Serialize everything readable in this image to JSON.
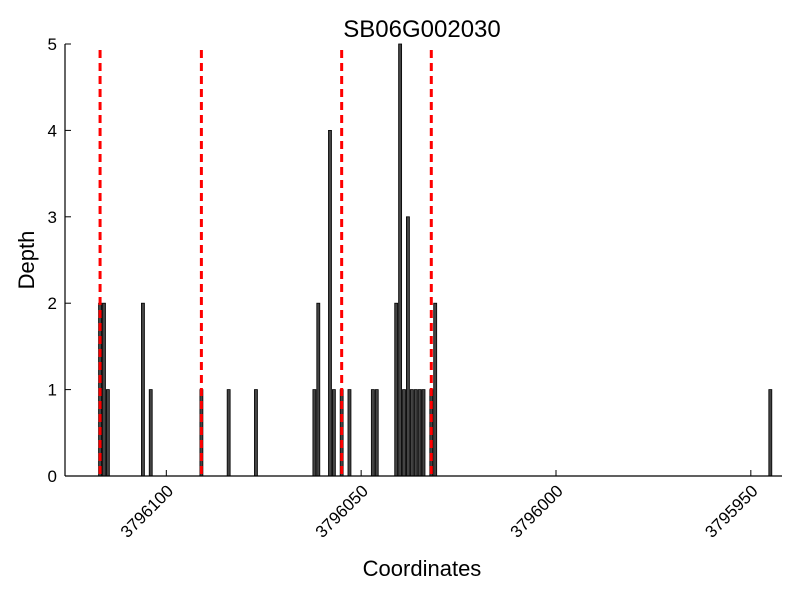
{
  "chart_data": {
    "type": "bar",
    "title": "SB06G002030",
    "xlabel": "Coordinates",
    "ylabel": "Depth",
    "xlim": [
      3796126,
      3795942
    ],
    "ylim": [
      0,
      5
    ],
    "x_axis_reversed": true,
    "x_ticks": [
      3796100,
      3796050,
      3796000,
      3795950
    ],
    "x_tick_labels": [
      "3796100",
      "3796050",
      "3796000",
      "3795950"
    ],
    "y_ticks": [
      0,
      1,
      2,
      3,
      4,
      5
    ],
    "y_tick_labels": [
      "0",
      "1",
      "2",
      "3",
      "4",
      "5"
    ],
    "grid": false,
    "bar_color": "#444444",
    "marker_color": "#ff0000",
    "series": [
      {
        "x": [
          3796117,
          3796116,
          3796115,
          3796106,
          3796104,
          3796091,
          3796084,
          3796077,
          3796062,
          3796061,
          3796058,
          3796057,
          3796055,
          3796053,
          3796047,
          3796046,
          3796041,
          3796040,
          3796039,
          3796038,
          3796037,
          3796036,
          3796035,
          3796034,
          3796032,
          3796031,
          3795945
        ],
        "values": [
          2,
          2,
          1,
          2,
          1,
          1,
          1,
          1,
          1,
          2,
          4,
          1,
          1,
          1,
          1,
          1,
          2,
          5,
          1,
          3,
          1,
          1,
          1,
          1,
          1,
          2,
          1
        ]
      }
    ],
    "markers": [
      3796117,
      3796091,
      3796055,
      3796032
    ]
  }
}
